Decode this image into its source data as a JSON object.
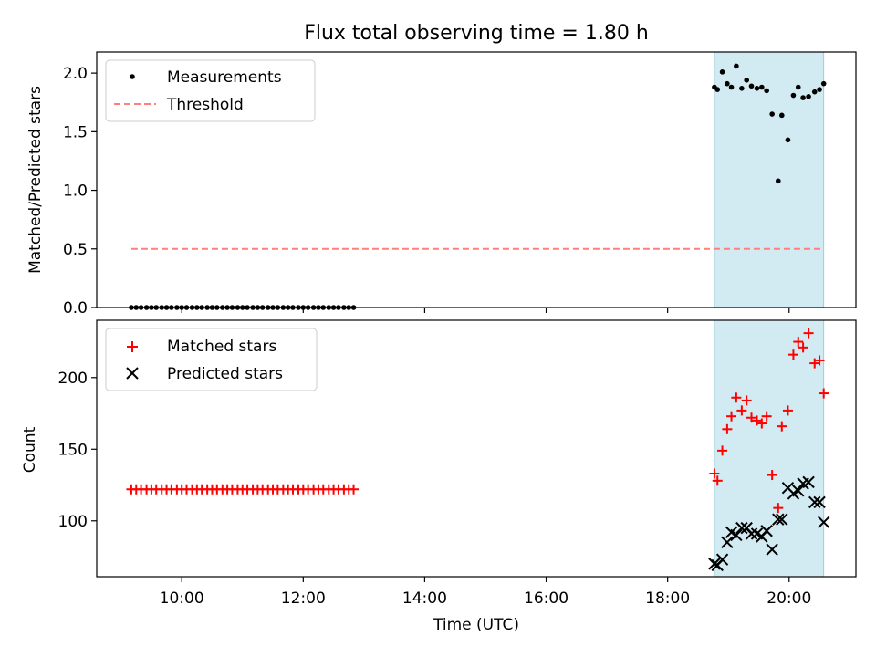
{
  "title": "Flux total observing time = 1.80 h",
  "colors": {
    "measurement": "#000000",
    "threshold": "#ff7f7f",
    "matched": "#ff0000",
    "predicted": "#000000",
    "shade": "#add8e6"
  },
  "chart_data": [
    {
      "type": "scatter",
      "panel": "top",
      "ylabel": "Matched/Predicted stars",
      "xlabel": "",
      "ylim": [
        0,
        2.18
      ],
      "yticks": [
        0.0,
        0.5,
        1.0,
        1.5,
        2.0
      ],
      "ytick_labels": [
        "0.0",
        "0.5",
        "1.0",
        "1.5",
        "2.0"
      ],
      "legend": {
        "position": "top-left",
        "entries": [
          "Measurements",
          "Threshold"
        ]
      },
      "shaded_span_hours": [
        18.77,
        20.57
      ],
      "threshold": {
        "name": "Threshold",
        "y": 0.5,
        "x_range": [
          9.17,
          20.57
        ]
      },
      "series": [
        {
          "name": "Measurements",
          "marker": "dot",
          "x": [
            9.17,
            9.25,
            9.33,
            9.42,
            9.5,
            9.58,
            9.67,
            9.75,
            9.83,
            9.92,
            10.0,
            10.08,
            10.17,
            10.25,
            10.33,
            10.42,
            10.5,
            10.58,
            10.67,
            10.75,
            10.83,
            10.92,
            11.0,
            11.08,
            11.17,
            11.25,
            11.33,
            11.42,
            11.5,
            11.58,
            11.67,
            11.75,
            11.83,
            11.92,
            12.0,
            12.08,
            12.17,
            12.25,
            12.33,
            12.42,
            12.5,
            12.58,
            12.67,
            12.75,
            12.83,
            18.77,
            18.82,
            18.9,
            18.98,
            19.05,
            19.13,
            19.22,
            19.3,
            19.38,
            19.47,
            19.55,
            19.63,
            19.72,
            19.82,
            19.88,
            19.98,
            20.07,
            20.15,
            20.23,
            20.32,
            20.42,
            20.5,
            20.57
          ],
          "y": [
            0,
            0,
            0,
            0,
            0,
            0,
            0,
            0,
            0,
            0,
            0,
            0,
            0,
            0,
            0,
            0,
            0,
            0,
            0,
            0,
            0,
            0,
            0,
            0,
            0,
            0,
            0,
            0,
            0,
            0,
            0,
            0,
            0,
            0,
            0,
            0,
            0,
            0,
            0,
            0,
            0,
            0,
            0,
            0,
            0,
            1.88,
            1.86,
            2.01,
            1.91,
            1.88,
            2.06,
            1.87,
            1.94,
            1.89,
            1.87,
            1.88,
            1.85,
            1.65,
            1.08,
            1.64,
            1.43,
            1.81,
            1.88,
            1.79,
            1.8,
            1.84,
            1.86,
            1.91
          ]
        }
      ]
    },
    {
      "type": "scatter",
      "panel": "bottom",
      "ylabel": "Count",
      "xlabel": "Time (UTC)",
      "xlim": [
        8.6,
        21.1
      ],
      "ylim": [
        61,
        240
      ],
      "yticks": [
        100,
        150,
        200
      ],
      "ytick_labels": [
        "100",
        "150",
        "200"
      ],
      "xticks": [
        10,
        12,
        14,
        16,
        18,
        20
      ],
      "xtick_labels": [
        "10:00",
        "12:00",
        "14:00",
        "16:00",
        "18:00",
        "20:00"
      ],
      "legend": {
        "position": "top-left",
        "entries": [
          "Matched stars",
          "Predicted stars"
        ]
      },
      "shaded_span_hours": [
        18.77,
        20.57
      ],
      "series": [
        {
          "name": "Matched stars",
          "marker": "plus",
          "x": [
            9.17,
            9.25,
            9.33,
            9.42,
            9.5,
            9.58,
            9.67,
            9.75,
            9.83,
            9.92,
            10.0,
            10.08,
            10.17,
            10.25,
            10.33,
            10.42,
            10.5,
            10.58,
            10.67,
            10.75,
            10.83,
            10.92,
            11.0,
            11.08,
            11.17,
            11.25,
            11.33,
            11.42,
            11.5,
            11.58,
            11.67,
            11.75,
            11.83,
            11.92,
            12.0,
            12.08,
            12.17,
            12.25,
            12.33,
            12.42,
            12.5,
            12.58,
            12.67,
            12.75,
            12.83,
            18.77,
            18.82,
            18.9,
            18.98,
            19.05,
            19.13,
            19.22,
            19.3,
            19.38,
            19.47,
            19.55,
            19.63,
            19.72,
            19.82,
            19.88,
            19.98,
            20.07,
            20.15,
            20.23,
            20.32,
            20.42,
            20.5,
            20.57
          ],
          "y": [
            122,
            122,
            122,
            122,
            122,
            122,
            122,
            122,
            122,
            122,
            122,
            122,
            122,
            122,
            122,
            122,
            122,
            122,
            122,
            122,
            122,
            122,
            122,
            122,
            122,
            122,
            122,
            122,
            122,
            122,
            122,
            122,
            122,
            122,
            122,
            122,
            122,
            122,
            122,
            122,
            122,
            122,
            122,
            122,
            122,
            133,
            128,
            149,
            164,
            173,
            186,
            177,
            184,
            172,
            170,
            168,
            173,
            132,
            109,
            166,
            177,
            216,
            225,
            221,
            231,
            210,
            212,
            189
          ]
        },
        {
          "name": "Predicted stars",
          "marker": "x",
          "x": [
            18.77,
            18.82,
            18.9,
            18.98,
            19.05,
            19.13,
            19.22,
            19.3,
            19.38,
            19.47,
            19.55,
            19.63,
            19.72,
            19.82,
            19.88,
            19.98,
            20.07,
            20.15,
            20.23,
            20.32,
            20.42,
            20.5,
            20.57
          ],
          "y": [
            70,
            69,
            73,
            85,
            92,
            90,
            95,
            95,
            91,
            91,
            89,
            93,
            80,
            101,
            101,
            123,
            119,
            121,
            126,
            127,
            113,
            113,
            99
          ]
        }
      ]
    }
  ]
}
